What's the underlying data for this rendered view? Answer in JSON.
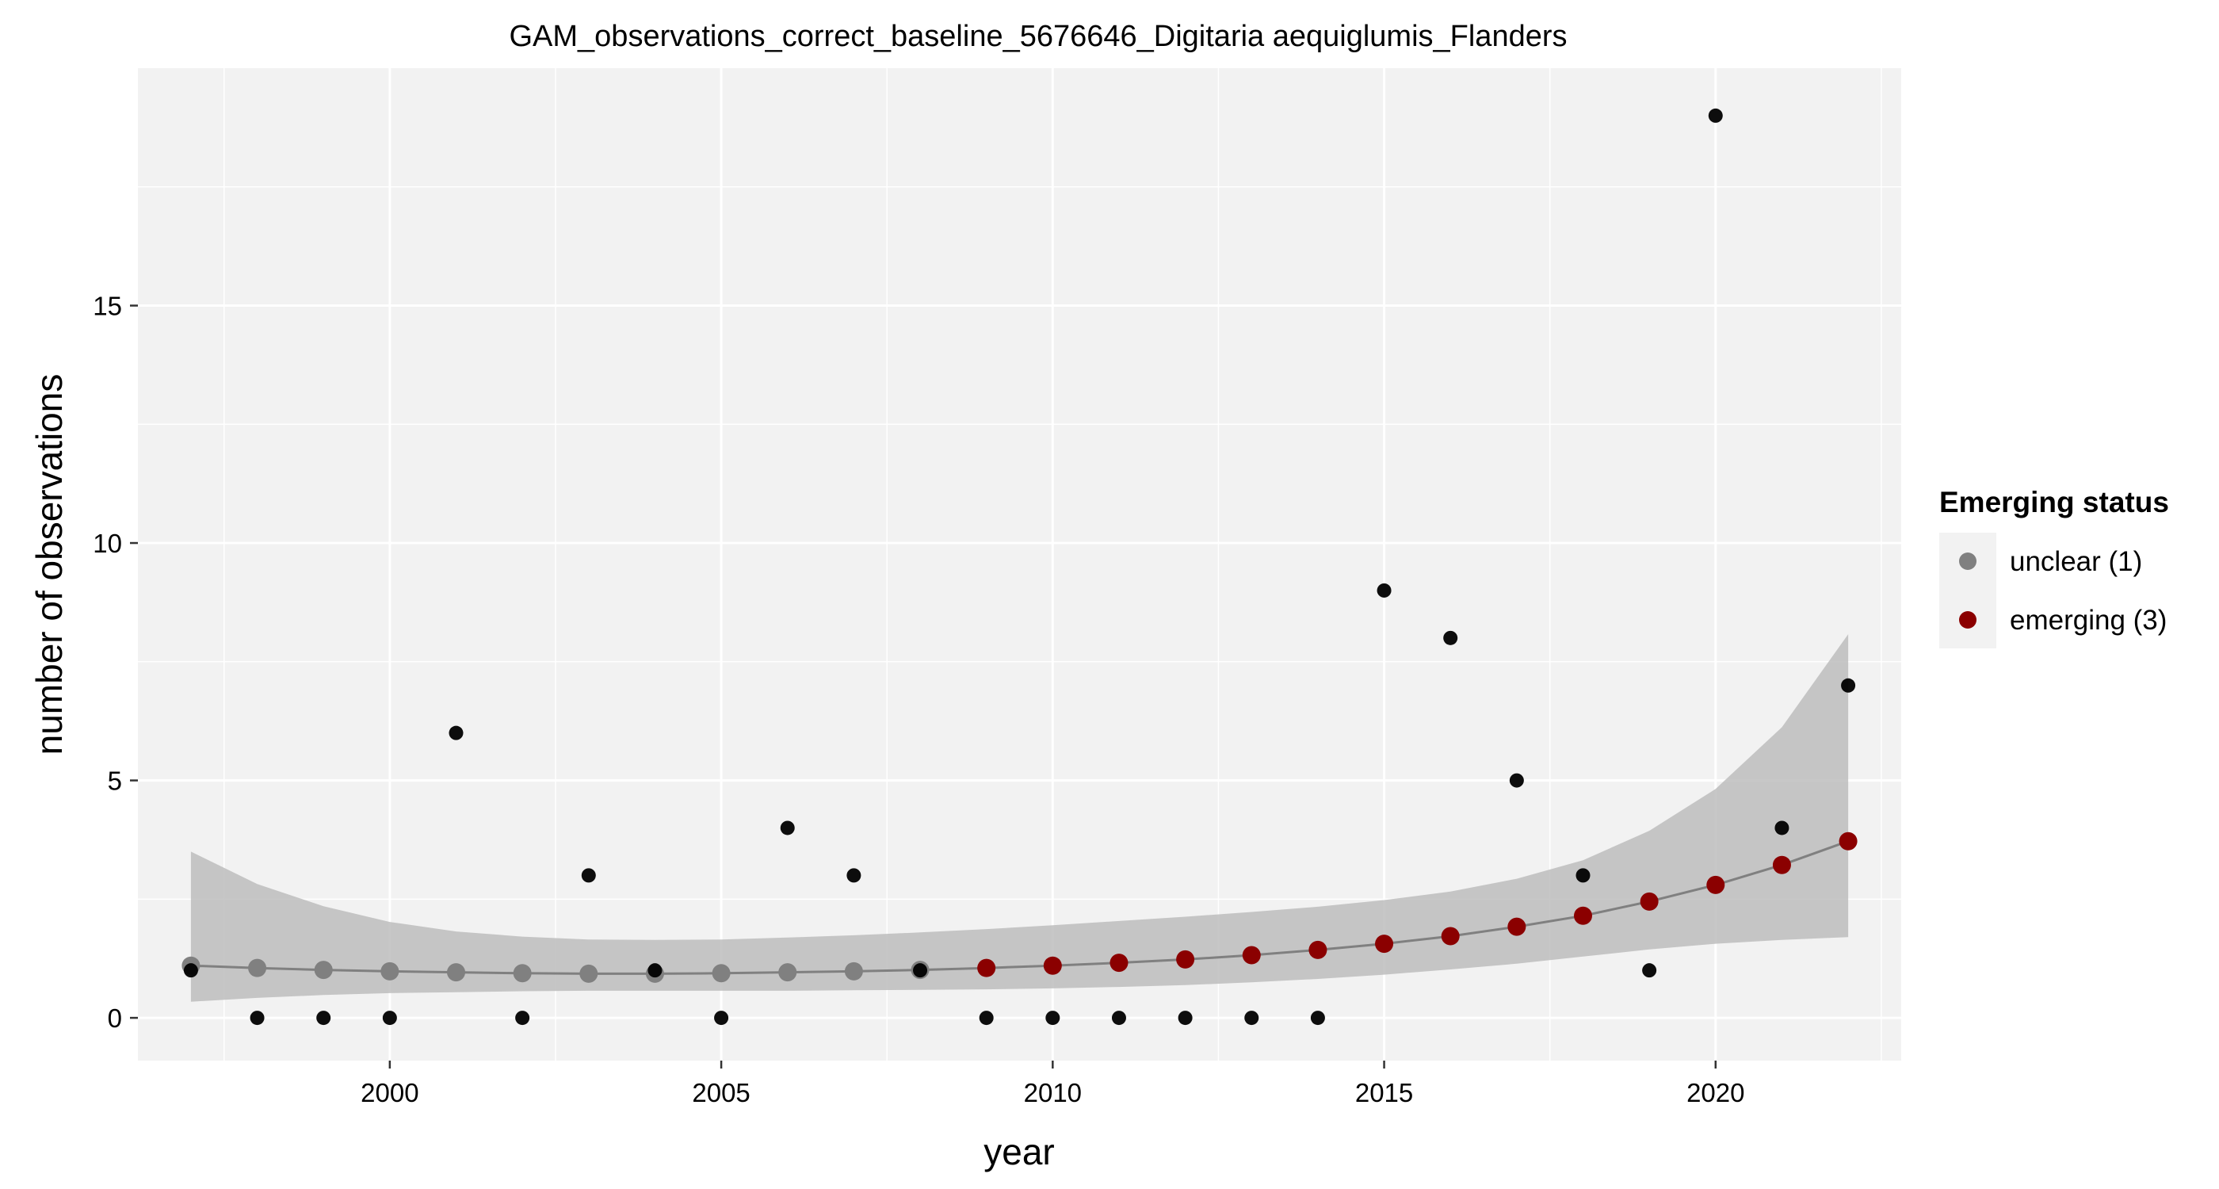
{
  "chart_data": {
    "type": "scatter",
    "title": "GAM_observations_correct_baseline_5676646_Digitaria aequiglumis_Flanders",
    "xlabel": "year",
    "ylabel": "number of observations",
    "xlim": [
      1996.2,
      2022.8
    ],
    "ylim": [
      -0.9,
      20.0
    ],
    "x_ticks": [
      2000,
      2005,
      2010,
      2015,
      2020
    ],
    "y_ticks": [
      0,
      5,
      10,
      15
    ],
    "grid": true,
    "legend": {
      "title": "Emerging status",
      "position": "right",
      "entries": [
        {
          "label": "unclear (1)",
          "color": "#808080"
        },
        {
          "label": "emerging (3)",
          "color": "#8b0000"
        }
      ]
    },
    "observations": {
      "color": "#000000",
      "x": [
        1997,
        1998,
        1999,
        2000,
        2001,
        2002,
        2003,
        2004,
        2005,
        2006,
        2007,
        2008,
        2009,
        2010,
        2011,
        2012,
        2013,
        2014,
        2015,
        2016,
        2017,
        2018,
        2019,
        2020,
        2021,
        2022
      ],
      "y": [
        1,
        0,
        0,
        0,
        6,
        0,
        3,
        1,
        0,
        4,
        3,
        1,
        0,
        0,
        0,
        0,
        0,
        0,
        9,
        8,
        5,
        3,
        1,
        19,
        4,
        7
      ]
    },
    "fit": {
      "line_color": "#808080",
      "band_color": "#bdbdbd",
      "x": [
        1997,
        1998,
        1999,
        2000,
        2001,
        2002,
        2003,
        2004,
        2005,
        2006,
        2007,
        2008,
        2009,
        2010,
        2011,
        2012,
        2013,
        2014,
        2015,
        2016,
        2017,
        2018,
        2019,
        2020,
        2021,
        2022
      ],
      "y": [
        1.1,
        1.05,
        1.01,
        0.98,
        0.96,
        0.94,
        0.93,
        0.93,
        0.94,
        0.96,
        0.98,
        1.01,
        1.05,
        1.1,
        1.16,
        1.23,
        1.32,
        1.43,
        1.56,
        1.72,
        1.92,
        2.15,
        2.45,
        2.8,
        3.22,
        3.72
      ],
      "lower": [
        0.34,
        0.42,
        0.48,
        0.52,
        0.54,
        0.56,
        0.57,
        0.57,
        0.57,
        0.57,
        0.58,
        0.59,
        0.6,
        0.62,
        0.65,
        0.69,
        0.75,
        0.82,
        0.91,
        1.02,
        1.14,
        1.29,
        1.44,
        1.56,
        1.64,
        1.7
      ],
      "upper": [
        3.5,
        2.82,
        2.35,
        2.02,
        1.82,
        1.71,
        1.65,
        1.64,
        1.65,
        1.69,
        1.74,
        1.8,
        1.87,
        1.95,
        2.04,
        2.13,
        2.23,
        2.34,
        2.48,
        2.66,
        2.93,
        3.32,
        3.94,
        4.82,
        6.12,
        8.08
      ],
      "status": [
        "unclear",
        "unclear",
        "unclear",
        "unclear",
        "unclear",
        "unclear",
        "unclear",
        "unclear",
        "unclear",
        "unclear",
        "unclear",
        "unclear",
        "emerging",
        "emerging",
        "emerging",
        "emerging",
        "emerging",
        "emerging",
        "emerging",
        "emerging",
        "emerging",
        "emerging",
        "emerging",
        "emerging",
        "emerging",
        "emerging"
      ]
    }
  }
}
